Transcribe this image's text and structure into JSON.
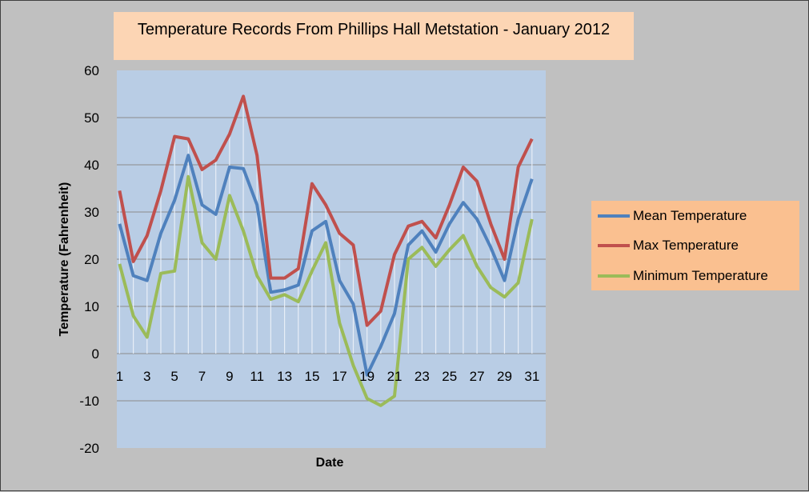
{
  "chart_data": {
    "type": "line",
    "title": "Temperature Records From Phillips Hall Metstation - January 2012",
    "xlabel": "Date",
    "ylabel": "Temperature (Fahrenheit)",
    "ylim": [
      -20,
      60
    ],
    "yticks": [
      -20,
      -10,
      0,
      10,
      20,
      30,
      40,
      50,
      60
    ],
    "x": [
      1,
      2,
      3,
      4,
      5,
      6,
      7,
      8,
      9,
      10,
      11,
      12,
      13,
      14,
      15,
      16,
      17,
      18,
      19,
      20,
      21,
      22,
      23,
      24,
      25,
      26,
      27,
      28,
      29,
      30,
      31
    ],
    "xtick_labels": [
      "1",
      "3",
      "5",
      "7",
      "9",
      "11",
      "13",
      "15",
      "17",
      "19",
      "21",
      "23",
      "25",
      "27",
      "29",
      "31"
    ],
    "grid": true,
    "drop_lines": true,
    "legend_position": "right",
    "series": [
      {
        "name": "Mean Temperature",
        "color": "#4f81bd",
        "values": [
          27.5,
          16.5,
          15.5,
          25.5,
          32.5,
          42,
          31.5,
          29.5,
          39.5,
          39.2,
          31.5,
          13,
          13.5,
          14.5,
          26,
          28,
          15.5,
          10.5,
          -4.5,
          1.5,
          8.5,
          23,
          26,
          21.5,
          27.5,
          32,
          28.5,
          22.5,
          15.5,
          28.5,
          37
        ]
      },
      {
        "name": "Max Temperature",
        "color": "#c0504d",
        "values": [
          34.5,
          19.5,
          25,
          34.5,
          46,
          45.5,
          39,
          41,
          46.5,
          54.5,
          42,
          16,
          16,
          18,
          36,
          31.5,
          25.5,
          23,
          6,
          9,
          21,
          27,
          28,
          24.5,
          31.5,
          39.5,
          36.5,
          27.5,
          20,
          39.5,
          45.5
        ]
      },
      {
        "name": "Minimum Temperature",
        "color": "#9bbb59",
        "values": [
          19,
          8,
          3.5,
          17,
          17.5,
          37.5,
          23.5,
          20,
          33.5,
          26,
          16.5,
          11.5,
          12.5,
          11,
          17.5,
          23.5,
          6.5,
          -2.5,
          -9.5,
          -11,
          -9,
          20,
          22.5,
          18.5,
          22,
          25,
          18.5,
          14,
          12,
          15,
          28.5
        ]
      }
    ]
  }
}
